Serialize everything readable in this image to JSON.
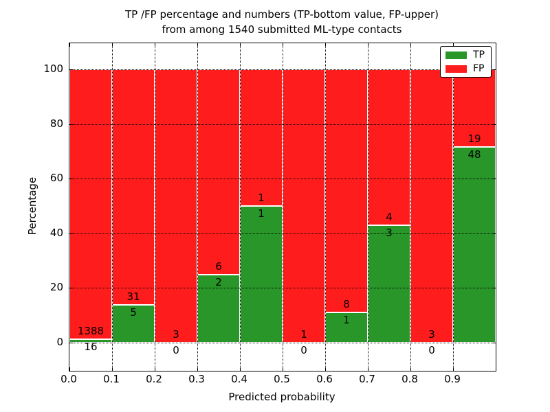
{
  "chart_data": {
    "type": "bar",
    "stacked": true,
    "title_line1": "TP /FP percentage and numbers (TP-bottom value, FP-upper)",
    "title_line2": "from among 1540 submitted ML-type contacts",
    "xlabel": "Predicted probability",
    "ylabel": "Percentage",
    "total_contacts": 1540,
    "xlim": [
      0.0,
      1.0
    ],
    "ylim": [
      -10.5,
      109.5
    ],
    "grid": "dotted",
    "xticks": [
      "0.0",
      "0.1",
      "0.2",
      "0.3",
      "0.4",
      "0.5",
      "0.6",
      "0.7",
      "0.8",
      "0.9"
    ],
    "yticks": [
      "0",
      "20",
      "40",
      "60",
      "80",
      "100"
    ],
    "bins": [
      {
        "range": "0.0-0.1",
        "tp": 16,
        "fp": 1388,
        "tp_pct": 1.14
      },
      {
        "range": "0.1-0.2",
        "tp": 5,
        "fp": 31,
        "tp_pct": 13.89
      },
      {
        "range": "0.2-0.3",
        "tp": 0,
        "fp": 3,
        "tp_pct": 0
      },
      {
        "range": "0.3-0.4",
        "tp": 2,
        "fp": 6,
        "tp_pct": 25
      },
      {
        "range": "0.4-0.5",
        "tp": 1,
        "fp": 1,
        "tp_pct": 50
      },
      {
        "range": "0.5-0.6",
        "tp": 0,
        "fp": 1,
        "tp_pct": 0
      },
      {
        "range": "0.6-0.7",
        "tp": 1,
        "fp": 8,
        "tp_pct": 11.11
      },
      {
        "range": "0.7-0.8",
        "tp": 3,
        "fp": 4,
        "tp_pct": 42.86
      },
      {
        "range": "0.8-0.9",
        "tp": 0,
        "fp": 3,
        "tp_pct": 0
      },
      {
        "range": "0.9-1.0",
        "tp": 48,
        "fp": 19,
        "tp_pct": 71.64
      }
    ],
    "legend": {
      "position": "upper right",
      "entries": [
        {
          "label": "TP",
          "color": "#289628"
        },
        {
          "label": "FP",
          "color": "#ff1c1c"
        }
      ]
    },
    "colors": {
      "tp": "#289628",
      "fp": "#ff1c1c",
      "bar_edge": "#ffffff",
      "grid": "#000000",
      "text": "#000000"
    }
  }
}
